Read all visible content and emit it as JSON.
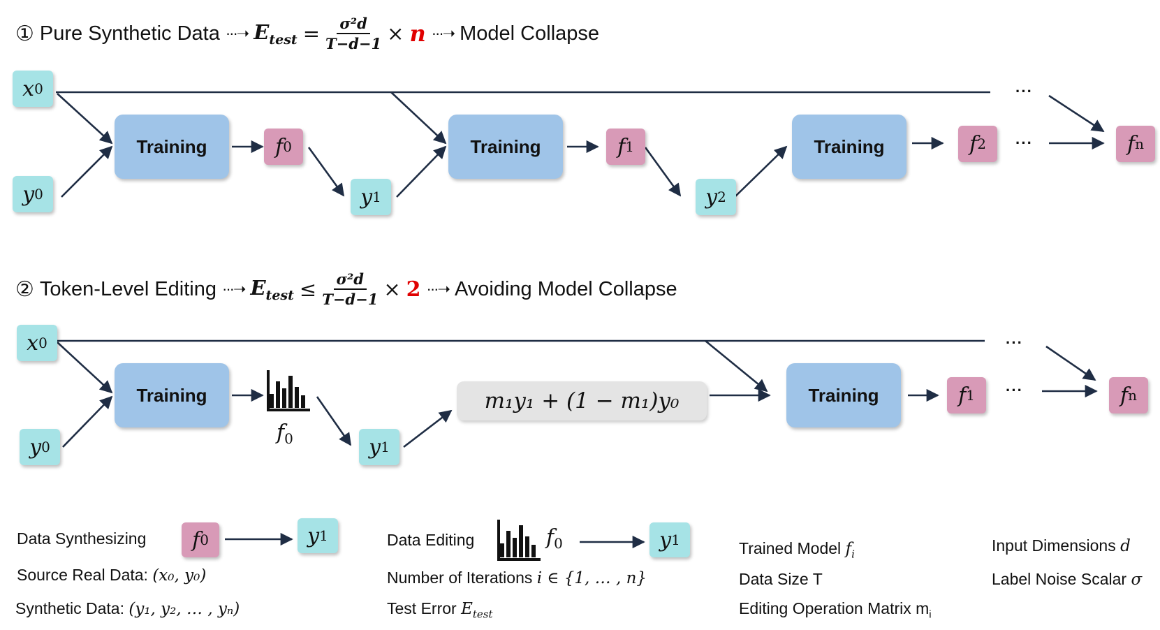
{
  "section1": {
    "num": "①",
    "left": "Pure Synthetic Data",
    "etest": "E",
    "etest_sub": "test",
    "rel": "=",
    "frac_num": "σ²d",
    "frac_den": "T−d−1",
    "times": "×",
    "factor": "n",
    "right": "Model Collapse"
  },
  "section2": {
    "num": "②",
    "left": "Token-Level Editing",
    "etest": "E",
    "etest_sub": "test",
    "rel": "≤",
    "frac_num": "σ²d",
    "frac_den": "T−d−1",
    "times": "×",
    "factor": "2",
    "right": "Avoiding Model Collapse"
  },
  "nodes": {
    "x": "x",
    "y": "y",
    "f": "f",
    "s0": "0",
    "s1": "1",
    "s2": "2",
    "sn": "n",
    "training": "Training",
    "dots": "···",
    "mix_formula": "m₁y₁ + (1 − m₁)y₀"
  },
  "legend": {
    "data_synth": "Data Synthesizing",
    "source_real": "Source Real Data:",
    "source_real_math": "(x₀, y₀)",
    "synthetic": "Synthetic Data:",
    "synthetic_math": "(y₁, y₂, … , yₙ)",
    "data_editing": "Data Editing",
    "iterations": "Number of Iterations",
    "iterations_math": "i ∈ {1, … , n}",
    "test_error": "Test Error",
    "test_error_math": "E",
    "test_error_sub": "test",
    "trained_model": "Trained Model",
    "trained_model_math": "f",
    "trained_model_sub": "i",
    "data_size": "Data Size T",
    "editing_matrix": "Editing Operation Matrix m",
    "editing_matrix_sub": "i",
    "input_dims": "Input Dimensions",
    "input_dims_math": "d",
    "label_noise": "Label Noise Scalar",
    "label_noise_math": "σ"
  },
  "colors": {
    "cyan": "#a6e3e6",
    "pink": "#d89ab7",
    "training": "#9fc4e8",
    "arrow": "#1f2d44",
    "highlight": "#e00000"
  }
}
